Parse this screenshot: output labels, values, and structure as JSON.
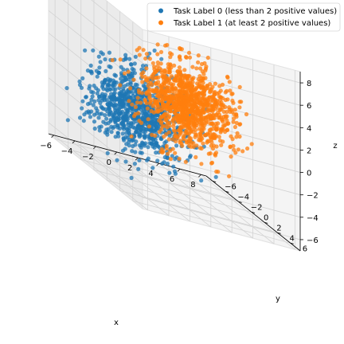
{
  "chart_data": {
    "type": "scatter",
    "projection": "3d",
    "grid": true,
    "legend_position": "top-right",
    "xlabel": "x",
    "ylabel": "y",
    "zlabel": "z",
    "xlim": [
      -6.5,
      8.5
    ],
    "ylim": [
      -7,
      7.5
    ],
    "zlim": [
      -7,
      9
    ],
    "xticks": [
      -6,
      -4,
      -2,
      0,
      2,
      4,
      6,
      8
    ],
    "yticks": [
      -6,
      -4,
      -2,
      0,
      2,
      4,
      6
    ],
    "zticks": [
      -6,
      -4,
      -2,
      0,
      2,
      4,
      6,
      8
    ],
    "series": [
      {
        "name": "Task Label 0 (less than 2 positive values)",
        "color": "#1f77b4",
        "distribution": {
          "center": [
            -1.5,
            -1.5,
            -1.2
          ],
          "spread": [
            2.0,
            2.0,
            1.8
          ],
          "count": 900
        }
      },
      {
        "name": "Task Label 1 (at least 2 positive values)",
        "color": "#ff7f0e",
        "distribution": {
          "center": [
            1.5,
            1.5,
            1.5
          ],
          "spread": [
            1.8,
            1.8,
            1.8
          ],
          "count": 1100
        }
      }
    ]
  }
}
